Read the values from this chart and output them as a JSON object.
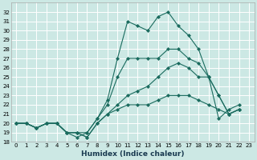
{
  "xlabel": "Humidex (Indice chaleur)",
  "background_color": "#cce8e4",
  "line_color": "#1a6b5e",
  "grid_color": "#ffffff",
  "xlim": [
    -0.5,
    23.5
  ],
  "ylim": [
    18,
    33
  ],
  "yticks": [
    18,
    19,
    20,
    21,
    22,
    23,
    24,
    25,
    26,
    27,
    28,
    29,
    30,
    31,
    32
  ],
  "xticks": [
    0,
    1,
    2,
    3,
    4,
    5,
    6,
    7,
    8,
    9,
    10,
    11,
    12,
    13,
    14,
    15,
    16,
    17,
    18,
    19,
    20,
    21,
    22,
    23
  ],
  "lines": [
    [
      20,
      20,
      19.5,
      20,
      20,
      19,
      18.5,
      19,
      20.5,
      22.5,
      27,
      31,
      30.5,
      30,
      31.5,
      32,
      30.5,
      29.5,
      28,
      25,
      20.5,
      21.5,
      22
    ],
    [
      20,
      20,
      19.5,
      20,
      20,
      19,
      19,
      19,
      20.5,
      22,
      25,
      27,
      27,
      27,
      27,
      28,
      28,
      27,
      26.5,
      25,
      23,
      21,
      21.5
    ],
    [
      20,
      20,
      19.5,
      20,
      20,
      19,
      19,
      18.5,
      20,
      21,
      22,
      23,
      23.5,
      24,
      25,
      26,
      26.5,
      26,
      25,
      25,
      23,
      21,
      21.5
    ],
    [
      20,
      20,
      19.5,
      20,
      20,
      19,
      19,
      18.5,
      20,
      21,
      21.5,
      22,
      22,
      22,
      22.5,
      23,
      23,
      23,
      22.5,
      22,
      21.5,
      21,
      21.5
    ]
  ]
}
